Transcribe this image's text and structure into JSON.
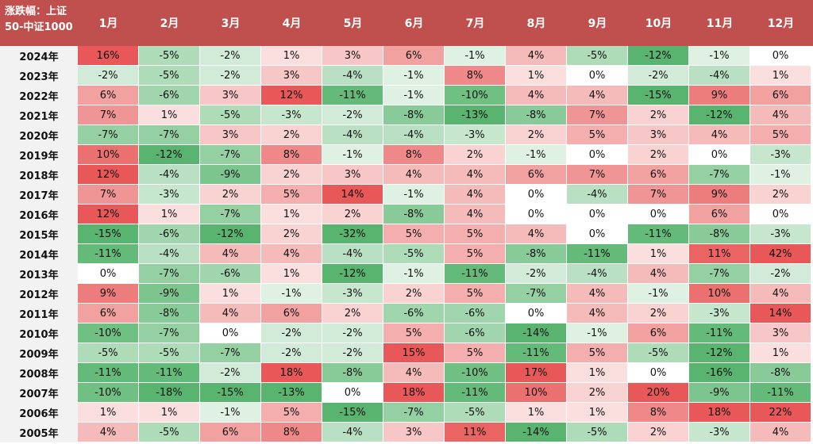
{
  "chart_data": {
    "type": "heatmap",
    "title": "涨跌幅：上证50-中证1000",
    "columns": [
      "1月",
      "2月",
      "3月",
      "4月",
      "5月",
      "6月",
      "7月",
      "8月",
      "9月",
      "10月",
      "11月",
      "12月"
    ],
    "rows": [
      {
        "year": "2024年",
        "values": [
          "16%",
          "-5%",
          "-2%",
          "1%",
          "3%",
          "6%",
          "-1%",
          "4%",
          "-5%",
          "-12%",
          "-1%",
          "0%"
        ]
      },
      {
        "year": "2023年",
        "values": [
          "-2%",
          "-5%",
          "-2%",
          "3%",
          "-4%",
          "-1%",
          "8%",
          "1%",
          "0%",
          "-2%",
          "-4%",
          "1%"
        ]
      },
      {
        "year": "2022年",
        "values": [
          "6%",
          "-6%",
          "3%",
          "12%",
          "-11%",
          "-1%",
          "-10%",
          "4%",
          "4%",
          "-15%",
          "9%",
          "6%"
        ]
      },
      {
        "year": "2021年",
        "values": [
          "7%",
          "1%",
          "-5%",
          "-3%",
          "-2%",
          "-8%",
          "-13%",
          "-8%",
          "7%",
          "2%",
          "-12%",
          "4%"
        ]
      },
      {
        "year": "2020年",
        "values": [
          "-7%",
          "-7%",
          "3%",
          "2%",
          "-4%",
          "-4%",
          "-3%",
          "2%",
          "5%",
          "3%",
          "4%",
          "5%"
        ]
      },
      {
        "year": "2019年",
        "values": [
          "10%",
          "-12%",
          "-7%",
          "8%",
          "-1%",
          "8%",
          "2%",
          "-1%",
          "0%",
          "2%",
          "0%",
          "-3%"
        ]
      },
      {
        "year": "2018年",
        "values": [
          "12%",
          "-4%",
          "-9%",
          "2%",
          "3%",
          "4%",
          "4%",
          "6%",
          "7%",
          "6%",
          "-7%",
          "-1%"
        ]
      },
      {
        "year": "2017年",
        "values": [
          "7%",
          "-3%",
          "2%",
          "5%",
          "14%",
          "-1%",
          "4%",
          "0%",
          "-4%",
          "7%",
          "9%",
          "2%"
        ]
      },
      {
        "year": "2016年",
        "values": [
          "12%",
          "1%",
          "-7%",
          "1%",
          "2%",
          "-8%",
          "4%",
          "0%",
          "0%",
          "0%",
          "6%",
          "0%"
        ]
      },
      {
        "year": "2015年",
        "values": [
          "-15%",
          "-6%",
          "-12%",
          "2%",
          "-32%",
          "5%",
          "5%",
          "4%",
          "0%",
          "-11%",
          "-8%",
          "-3%"
        ]
      },
      {
        "year": "2014年",
        "values": [
          "-11%",
          "-4%",
          "4%",
          "4%",
          "-4%",
          "-5%",
          "5%",
          "-8%",
          "-11%",
          "1%",
          "11%",
          "42%"
        ]
      },
      {
        "year": "2013年",
        "values": [
          "0%",
          "-7%",
          "-6%",
          "1%",
          "-12%",
          "-1%",
          "-11%",
          "-2%",
          "-4%",
          "4%",
          "-7%",
          "-2%"
        ]
      },
      {
        "year": "2012年",
        "values": [
          "9%",
          "-9%",
          "1%",
          "-1%",
          "-3%",
          "2%",
          "5%",
          "-7%",
          "4%",
          "-1%",
          "10%",
          "4%"
        ]
      },
      {
        "year": "2011年",
        "values": [
          "6%",
          "-8%",
          "4%",
          "6%",
          "2%",
          "-6%",
          "-6%",
          "0%",
          "4%",
          "2%",
          "-3%",
          "14%"
        ]
      },
      {
        "year": "2010年",
        "values": [
          "-10%",
          "-7%",
          "0%",
          "-2%",
          "-2%",
          "5%",
          "-6%",
          "-14%",
          "-1%",
          "6%",
          "-11%",
          "3%"
        ]
      },
      {
        "year": "2009年",
        "values": [
          "-5%",
          "-5%",
          "-7%",
          "-2%",
          "-2%",
          "15%",
          "5%",
          "-11%",
          "5%",
          "-5%",
          "-12%",
          "1%"
        ]
      },
      {
        "year": "2008年",
        "values": [
          "-11%",
          "-11%",
          "-2%",
          "18%",
          "-8%",
          "4%",
          "-10%",
          "17%",
          "1%",
          "0%",
          "-16%",
          "-8%"
        ]
      },
      {
        "year": "2007年",
        "values": [
          "-10%",
          "-18%",
          "-15%",
          "-13%",
          "0%",
          "18%",
          "-11%",
          "10%",
          "2%",
          "20%",
          "-9%",
          "-11%"
        ]
      },
      {
        "year": "2006年",
        "values": [
          "1%",
          "1%",
          "-1%",
          "5%",
          "-15%",
          "-7%",
          "-5%",
          "1%",
          "1%",
          "8%",
          "18%",
          "22%"
        ]
      },
      {
        "year": "2005年",
        "values": [
          "4%",
          "-5%",
          "6%",
          "8%",
          "-4%",
          "3%",
          "11%",
          "-14%",
          "-5%",
          "2%",
          "-3%",
          "4%"
        ]
      }
    ],
    "colors": {
      "header": "#c0504d",
      "positive": "#e05a5a",
      "negative": "#5cb46e",
      "zero": "#ffffff"
    }
  }
}
